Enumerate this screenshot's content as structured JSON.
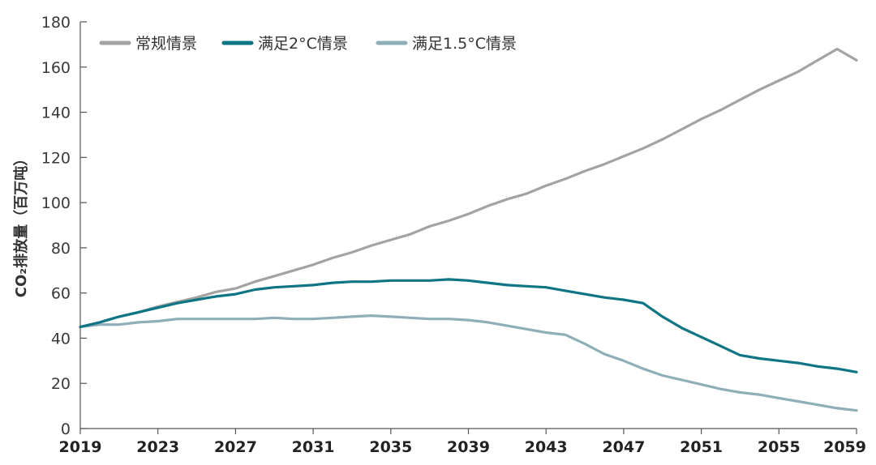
{
  "chart_data": {
    "type": "line",
    "title": "",
    "xlabel": "",
    "ylabel": "CO₂排放量（百万吨）",
    "ylim": [
      0,
      180
    ],
    "xlim": [
      2019,
      2059
    ],
    "yticks": [
      0,
      20,
      40,
      60,
      80,
      100,
      120,
      140,
      160,
      180
    ],
    "xticks": [
      2019,
      2023,
      2027,
      2031,
      2035,
      2039,
      2043,
      2047,
      2051,
      2055,
      2059
    ],
    "grid": false,
    "legend_position": "top-left",
    "x": [
      2019,
      2020,
      2021,
      2022,
      2023,
      2024,
      2025,
      2026,
      2027,
      2028,
      2029,
      2030,
      2031,
      2032,
      2033,
      2034,
      2035,
      2036,
      2037,
      2038,
      2039,
      2040,
      2041,
      2042,
      2043,
      2044,
      2045,
      2046,
      2047,
      2048,
      2049,
      2050,
      2051,
      2052,
      2053,
      2054,
      2055,
      2056,
      2057,
      2058,
      2059
    ],
    "series": [
      {
        "name": "常规情景",
        "color": "#a3a3a3",
        "values": [
          45,
          47,
          49.5,
          51.5,
          54,
          56,
          58,
          60.5,
          62,
          65,
          67.5,
          70,
          72.5,
          75.5,
          78,
          81,
          83.5,
          86,
          89.5,
          92,
          95,
          98.5,
          101.5,
          104,
          107.5,
          110.5,
          114,
          117,
          120.5,
          124,
          128,
          132.5,
          137,
          141,
          145.5,
          150,
          154,
          158,
          163,
          168,
          163
        ]
      },
      {
        "name": "满足2°C情景",
        "color": "#0e7585",
        "values": [
          45,
          47,
          49.5,
          51.5,
          53.5,
          55.5,
          57,
          58.5,
          59.5,
          61.5,
          62.5,
          63,
          63.5,
          64.5,
          65,
          65,
          65.5,
          65.5,
          65.5,
          66,
          65.5,
          64.5,
          63.5,
          63,
          62.5,
          61,
          59.5,
          58,
          57,
          55.5,
          49.5,
          44.5,
          40.5,
          36.5,
          32.5,
          31,
          30,
          29,
          27.5,
          26.5,
          25
        ]
      },
      {
        "name": "满足1.5°C情景",
        "color": "#8eaeb8",
        "values": [
          45,
          46,
          46,
          47,
          47.5,
          48.5,
          48.5,
          48.5,
          48.5,
          48.5,
          49,
          48.5,
          48.5,
          49,
          49.5,
          50,
          49.5,
          49,
          48.5,
          48.5,
          48,
          47,
          45.5,
          44,
          42.5,
          41.5,
          37.5,
          33,
          30,
          26.5,
          23.5,
          21.5,
          19.5,
          17.5,
          16,
          15,
          13.5,
          12,
          10.5,
          9,
          8
        ]
      }
    ]
  }
}
